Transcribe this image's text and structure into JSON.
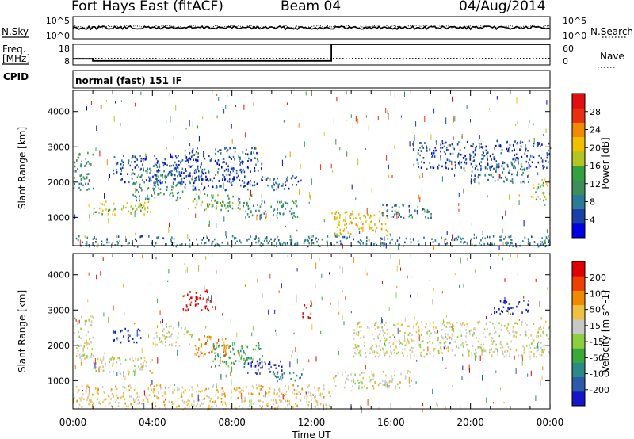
{
  "header": {
    "station": "Fort Hays East (fitACF)",
    "beam": "Beam 04",
    "date": "04/Aug/2014"
  },
  "side_labels": {
    "nsky": "N.Sky",
    "nsearch": "N.Search",
    "freq_line1": "Freq.",
    "freq_line2": "[MHz]",
    "nave": "Nave",
    "cpid": "CPID"
  },
  "cpid_text": "normal (fast) 151 IF",
  "chart_data": [
    {
      "type": "line",
      "name": "noise panel",
      "left_ticks": [
        "10^5",
        "10^0"
      ],
      "right_ticks": [
        "10^5",
        "10^0"
      ],
      "series": [
        {
          "name": "N.Sky",
          "style": "solid",
          "x_hours": [
            0,
            24
          ],
          "level": 0.5
        },
        {
          "name": "N.Search",
          "style": "dotted",
          "x_hours": [
            0,
            24
          ],
          "level": 0.55
        }
      ]
    },
    {
      "type": "line",
      "name": "frequency / nave panel",
      "left_ticks": [
        "18",
        "8"
      ],
      "right_ticks": [
        "60",
        "0"
      ],
      "series": [
        {
          "name": "Freq. [MHz]",
          "style": "solid",
          "x_hours": [
            0,
            1,
            1,
            13,
            13,
            24
          ],
          "values": [
            11,
            11,
            10,
            10,
            18,
            18
          ]
        },
        {
          "name": "Nave",
          "style": "dotted",
          "x_hours": [
            0,
            24
          ],
          "values": [
            19,
            19
          ]
        }
      ]
    },
    {
      "type": "heatmap",
      "name": "power",
      "ylabel": "Slant Range [km]",
      "yticks": [
        1000,
        2000,
        3000,
        4000
      ],
      "ylim": [
        200,
        4600
      ],
      "colorbar_label": "Power [dB]",
      "colorbar_ticks": [
        "28",
        "24",
        "20",
        "16",
        "12",
        "8",
        "4"
      ],
      "colorbar_colors": [
        "#0000e0",
        "#1a3fa6",
        "#2a7a9a",
        "#3c8f5a",
        "#34a040",
        "#b4c420",
        "#f0c000",
        "#f08a00",
        "#e83010",
        "#e01010"
      ],
      "regions": [
        {
          "t": [
            0.0,
            1.0
          ],
          "r": [
            1800,
            2900
          ],
          "level": 3
        },
        {
          "t": [
            1.0,
            4.0
          ],
          "r": [
            1100,
            1500
          ],
          "level": 5
        },
        {
          "t": [
            3.0,
            5.5
          ],
          "r": [
            1500,
            2500
          ],
          "level": 3
        },
        {
          "t": [
            2.0,
            6.5
          ],
          "r": [
            2000,
            2800
          ],
          "level": 1
        },
        {
          "t": [
            5.5,
            9.5
          ],
          "r": [
            1800,
            3000
          ],
          "level": 1
        },
        {
          "t": [
            6.0,
            9.0
          ],
          "r": [
            1200,
            1700
          ],
          "level": 4
        },
        {
          "t": [
            8.5,
            11.5
          ],
          "r": [
            1000,
            1500
          ],
          "level": 3
        },
        {
          "t": [
            9.5,
            11.5
          ],
          "r": [
            1800,
            2200
          ],
          "level": 1
        },
        {
          "t": [
            13.0,
            16.0
          ],
          "r": [
            500,
            1200
          ],
          "level": 6
        },
        {
          "t": [
            15.5,
            18.0
          ],
          "r": [
            1000,
            1400
          ],
          "level": 2
        },
        {
          "t": [
            17.0,
            24.0
          ],
          "r": [
            2400,
            3200
          ],
          "level": 1
        },
        {
          "t": [
            20.0,
            23.0
          ],
          "r": [
            2000,
            2600
          ],
          "level": 2
        },
        {
          "t": [
            23.0,
            24.0
          ],
          "r": [
            1500,
            2100
          ],
          "level": 5
        },
        {
          "t": [
            0.0,
            24.0
          ],
          "r": [
            200,
            500
          ],
          "level": 2
        }
      ]
    },
    {
      "type": "heatmap",
      "name": "velocity",
      "xlabel": "Time UT",
      "xticks": [
        "00:00",
        "04:00",
        "08:00",
        "12:00",
        "16:00",
        "20:00",
        "00:00"
      ],
      "xlim_hours": [
        0,
        24
      ],
      "ylabel": "Slant Range [km]",
      "yticks": [
        1000,
        2000,
        3000,
        4000
      ],
      "ylim": [
        200,
        4600
      ],
      "colorbar_label": "Velocity [m s^-1]",
      "colorbar_ticks": [
        "200",
        "100",
        "50",
        "15",
        "-15",
        "-50",
        "-100",
        "-200"
      ],
      "colorbar_colors": [
        "#1616c8",
        "#2a5aa8",
        "#2a8a8a",
        "#3aa83a",
        "#8cd040",
        "#c8c8c8",
        "#f0c040",
        "#f08a00",
        "#f04000",
        "#e00000"
      ],
      "regions": [
        {
          "t": [
            0.0,
            1.0
          ],
          "r": [
            1600,
            2900
          ],
          "level": 5
        },
        {
          "t": [
            1.0,
            4.0
          ],
          "r": [
            1200,
            1700
          ],
          "level": 5
        },
        {
          "t": [
            2.0,
            3.5
          ],
          "r": [
            2100,
            2500
          ],
          "level": 0
        },
        {
          "t": [
            4.0,
            6.0
          ],
          "r": [
            2000,
            2600
          ],
          "level": 5
        },
        {
          "t": [
            5.5,
            7.0
          ],
          "r": [
            3000,
            3600
          ],
          "level": 9
        },
        {
          "t": [
            6.0,
            8.0
          ],
          "r": [
            1700,
            2300
          ],
          "level": 7
        },
        {
          "t": [
            7.0,
            9.5
          ],
          "r": [
            1400,
            2100
          ],
          "level": 3
        },
        {
          "t": [
            8.5,
            10.5
          ],
          "r": [
            1200,
            1600
          ],
          "level": 0
        },
        {
          "t": [
            10.0,
            11.5
          ],
          "r": [
            1000,
            1300
          ],
          "level": 2
        },
        {
          "t": [
            11.5,
            12.0
          ],
          "r": [
            2800,
            3400
          ],
          "level": 9
        },
        {
          "t": [
            13.0,
            17.0
          ],
          "r": [
            800,
            1300
          ],
          "level": 5
        },
        {
          "t": [
            14.0,
            24.0
          ],
          "r": [
            1700,
            2700
          ],
          "level": 5
        },
        {
          "t": [
            21.0,
            23.0
          ],
          "r": [
            2900,
            3300
          ],
          "level": 0
        },
        {
          "t": [
            0.0,
            13.0
          ],
          "r": [
            200,
            900
          ],
          "level": 6
        }
      ]
    }
  ]
}
